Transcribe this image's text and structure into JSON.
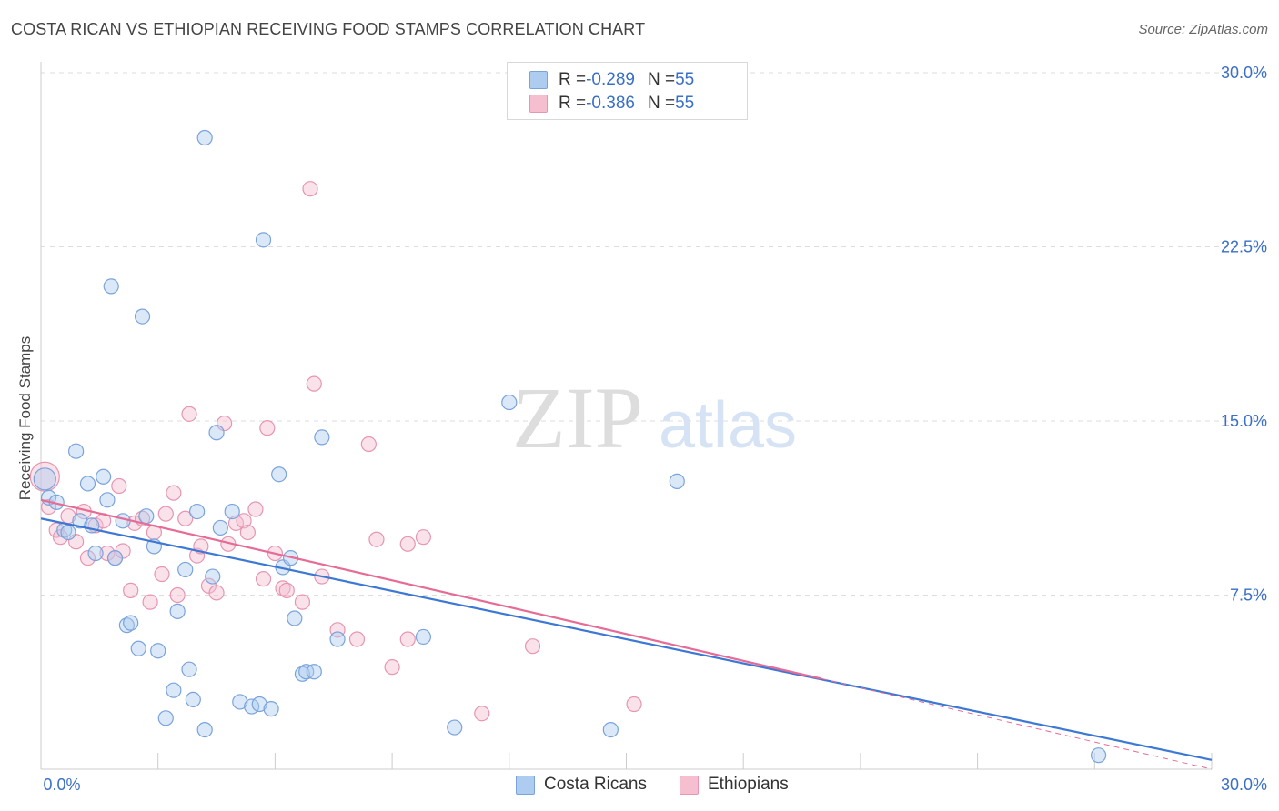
{
  "title": "COSTA RICAN VS ETHIOPIAN RECEIVING FOOD STAMPS CORRELATION CHART",
  "source": "Source: ZipAtlas.com",
  "watermark": {
    "zip": "ZIP",
    "atlas": "atlas"
  },
  "legend": {
    "rows": [
      {
        "r_label": "R = ",
        "r_value": "-0.289",
        "n_label": "N = ",
        "n_value": "55"
      },
      {
        "r_label": "R = ",
        "r_value": "-0.386",
        "n_label": "N = ",
        "n_value": "55"
      }
    ]
  },
  "bottom_legend": {
    "series1": "Costa Ricans",
    "series2": "Ethiopians"
  },
  "colors": {
    "blue_fill": "#aecbf0",
    "blue_stroke": "#7aa3dc",
    "blue_line": "#3d78d4",
    "pink_fill": "#f5bfd0",
    "pink_stroke": "#e695b2",
    "pink_line": "#e66b96",
    "grid": "#dddddd",
    "tick_label": "#3a6fc6"
  },
  "chart_data": {
    "type": "scatter",
    "title": "COSTA RICAN VS ETHIOPIAN RECEIVING FOOD STAMPS CORRELATION CHART",
    "xlabel": "",
    "ylabel": "Receiving Food Stamps",
    "xlim": [
      0,
      30
    ],
    "ylim": [
      0,
      30
    ],
    "x_tick_labels": [
      "0.0%",
      "30.0%"
    ],
    "y_ticks": [
      7.5,
      15.0,
      22.5,
      30.0
    ],
    "y_tick_labels": [
      "7.5%",
      "15.0%",
      "22.5%",
      "30.0%"
    ],
    "series": [
      {
        "name": "Costa Ricans",
        "r": -0.289,
        "n": 55,
        "trend": {
          "x0": 0,
          "y0": 10.8,
          "x1": 30,
          "y1": 0.4
        },
        "points": [
          [
            0.1,
            12.5
          ],
          [
            0.2,
            11.7
          ],
          [
            0.4,
            11.5
          ],
          [
            0.6,
            10.3
          ],
          [
            0.7,
            10.2
          ],
          [
            0.9,
            13.7
          ],
          [
            1.0,
            10.7
          ],
          [
            1.2,
            12.3
          ],
          [
            1.3,
            10.5
          ],
          [
            1.4,
            9.3
          ],
          [
            1.6,
            12.6
          ],
          [
            1.7,
            11.6
          ],
          [
            1.8,
            20.8
          ],
          [
            1.9,
            9.1
          ],
          [
            2.1,
            10.7
          ],
          [
            2.2,
            6.2
          ],
          [
            2.3,
            6.3
          ],
          [
            2.5,
            5.2
          ],
          [
            2.6,
            19.5
          ],
          [
            2.7,
            10.9
          ],
          [
            2.9,
            9.6
          ],
          [
            3.0,
            5.1
          ],
          [
            3.2,
            2.2
          ],
          [
            3.4,
            3.4
          ],
          [
            3.5,
            6.8
          ],
          [
            3.7,
            8.6
          ],
          [
            3.8,
            4.3
          ],
          [
            3.9,
            3.0
          ],
          [
            4.0,
            11.1
          ],
          [
            4.2,
            1.7
          ],
          [
            4.2,
            27.2
          ],
          [
            4.4,
            8.3
          ],
          [
            4.5,
            14.5
          ],
          [
            4.6,
            10.4
          ],
          [
            4.9,
            11.1
          ],
          [
            5.1,
            2.9
          ],
          [
            5.4,
            2.7
          ],
          [
            5.6,
            2.8
          ],
          [
            5.7,
            22.8
          ],
          [
            5.9,
            2.6
          ],
          [
            6.1,
            12.7
          ],
          [
            6.2,
            8.7
          ],
          [
            6.4,
            9.1
          ],
          [
            6.5,
            6.5
          ],
          [
            6.7,
            4.1
          ],
          [
            6.8,
            4.2
          ],
          [
            7.2,
            14.3
          ],
          [
            7.6,
            5.6
          ],
          [
            9.8,
            5.7
          ],
          [
            10.6,
            1.8
          ],
          [
            12.0,
            15.8
          ],
          [
            14.6,
            1.7
          ],
          [
            16.3,
            12.4
          ],
          [
            27.1,
            0.6
          ],
          [
            7.0,
            4.2
          ]
        ]
      },
      {
        "name": "Ethiopians",
        "r": -0.386,
        "n": 55,
        "trend": {
          "x0": 0,
          "y0": 11.6,
          "x1": 20,
          "y1": 3.9
        },
        "trend_dashed": {
          "x0": 20,
          "y0": 3.9,
          "x1": 30,
          "y1": 0.0
        },
        "points": [
          [
            0.1,
            12.6
          ],
          [
            0.2,
            11.3
          ],
          [
            0.4,
            10.3
          ],
          [
            0.5,
            10.0
          ],
          [
            0.7,
            10.9
          ],
          [
            0.9,
            9.8
          ],
          [
            1.1,
            11.1
          ],
          [
            1.2,
            9.1
          ],
          [
            1.4,
            10.5
          ],
          [
            1.6,
            10.7
          ],
          [
            1.7,
            9.3
          ],
          [
            1.9,
            9.1
          ],
          [
            2.0,
            12.2
          ],
          [
            2.1,
            9.4
          ],
          [
            2.3,
            7.7
          ],
          [
            2.4,
            10.6
          ],
          [
            2.6,
            10.8
          ],
          [
            2.8,
            7.2
          ],
          [
            2.9,
            10.2
          ],
          [
            3.1,
            8.4
          ],
          [
            3.2,
            11.0
          ],
          [
            3.4,
            11.9
          ],
          [
            3.5,
            7.5
          ],
          [
            3.7,
            10.8
          ],
          [
            3.8,
            15.3
          ],
          [
            4.0,
            9.2
          ],
          [
            4.1,
            9.6
          ],
          [
            4.3,
            7.9
          ],
          [
            4.5,
            7.6
          ],
          [
            4.7,
            14.9
          ],
          [
            4.8,
            9.7
          ],
          [
            5.0,
            10.6
          ],
          [
            5.2,
            10.7
          ],
          [
            5.3,
            10.2
          ],
          [
            5.5,
            11.2
          ],
          [
            5.7,
            8.2
          ],
          [
            5.8,
            14.7
          ],
          [
            6.0,
            9.3
          ],
          [
            6.2,
            7.8
          ],
          [
            6.3,
            7.7
          ],
          [
            6.7,
            7.2
          ],
          [
            6.9,
            25.0
          ],
          [
            7.0,
            16.6
          ],
          [
            7.2,
            8.3
          ],
          [
            7.6,
            6.0
          ],
          [
            8.1,
            5.6
          ],
          [
            8.4,
            14.0
          ],
          [
            8.6,
            9.9
          ],
          [
            9.0,
            4.4
          ],
          [
            9.4,
            5.6
          ],
          [
            9.4,
            9.7
          ],
          [
            9.8,
            10.0
          ],
          [
            11.3,
            2.4
          ],
          [
            12.6,
            5.3
          ],
          [
            15.2,
            2.8
          ]
        ]
      }
    ]
  }
}
